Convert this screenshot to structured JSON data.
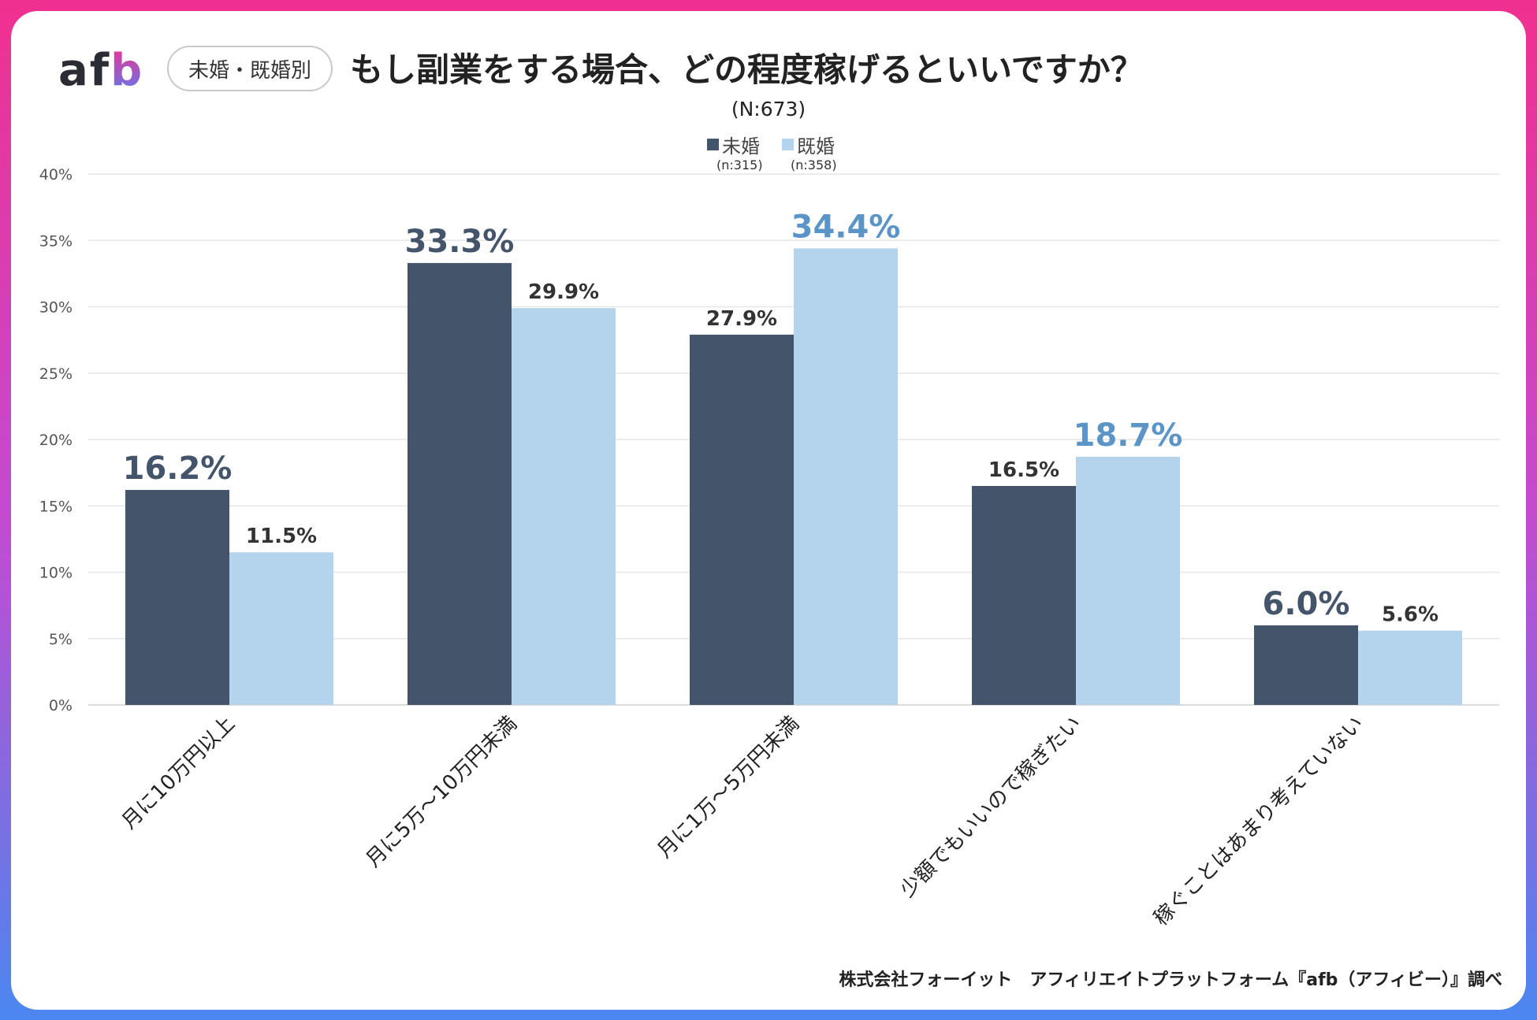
{
  "brand": {
    "logo_a": "af",
    "logo_b": "b"
  },
  "header": {
    "pill": "未婚・既婚別",
    "title": "もし副業をする場合、どの程度稼げるといいですか？",
    "subtitle": "(N:673)"
  },
  "footer": "株式会社フォーイット　アフィリエイトプラットフォーム『afb（アフィビー）』調べ",
  "colors": {
    "series1": "#44546a",
    "series2": "#b4d3ec",
    "highlight1": "#44546a",
    "highlight2": "#5b95c8",
    "normal_label": "#333333"
  },
  "chart_data": {
    "type": "bar",
    "title": "もし副業をする場合、どの程度稼げるといいですか？",
    "ylim": [
      0,
      40
    ],
    "yticks": [
      "0%",
      "5%",
      "10%",
      "15%",
      "20%",
      "25%",
      "30%",
      "35%",
      "40%"
    ],
    "categories": [
      "月に10万円以上",
      "月に5万〜10万円未満",
      "月に1万〜5万円未満",
      "少額でもいいので稼ぎたい",
      "稼ぐことはあまり考えていない"
    ],
    "series": [
      {
        "name": "未婚",
        "n": "(n:315)",
        "values": [
          16.2,
          33.3,
          27.9,
          16.5,
          6.0
        ],
        "labels": [
          "16.2%",
          "33.3%",
          "27.9%",
          "16.5%",
          "6.0%"
        ]
      },
      {
        "name": "既婚",
        "n": "(n:358)",
        "values": [
          11.5,
          29.9,
          34.4,
          18.7,
          5.6
        ],
        "labels": [
          "11.5%",
          "29.9%",
          "34.4%",
          "18.7%",
          "5.6%"
        ]
      }
    ],
    "legend": "top-center"
  }
}
